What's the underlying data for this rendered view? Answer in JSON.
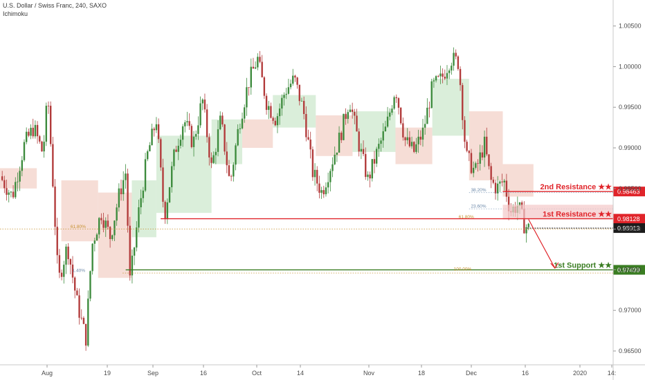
{
  "header": {
    "title": "U.S. Dollar / Swiss Franc, 240, SAXO",
    "indicator": "Ichimoku"
  },
  "colors": {
    "bull": "#3d8b3d",
    "bear": "#b23b3b",
    "resistance": "#e0242a",
    "support": "#3a7d22",
    "price_badge": "#1c1c1c",
    "cloud_bull": "#cde8cd",
    "cloud_bear": "#f3d2c8",
    "fib": "#6a87a8",
    "fib_gold": "#c5902e"
  },
  "chart_data": {
    "type": "candlestick",
    "yaxis": {
      "ylim": [
        0.9633,
        1.0082
      ],
      "ticks": [
        {
          "value": 1.005,
          "label": "1.00500"
        },
        {
          "value": 1.0,
          "label": "1.00000"
        },
        {
          "value": 0.995,
          "label": "0.99500"
        },
        {
          "value": 0.99,
          "label": "0.99000"
        },
        {
          "value": 0.985,
          "label": "0.98500"
        },
        {
          "value": 0.98,
          "label": "0.98000"
        },
        {
          "value": 0.975,
          "label": "0.97500"
        },
        {
          "value": 0.97,
          "label": "0.97000"
        },
        {
          "value": 0.965,
          "label": "0.96500"
        }
      ]
    },
    "xaxis": {
      "ticks": [
        "Aug",
        "19",
        "Sep",
        "16",
        "Oct",
        "14",
        "Nov",
        "18",
        "Dec",
        "16",
        "2020",
        "14:"
      ]
    },
    "key_points": [
      {
        "t": 0.0,
        "p": 0.9865
      },
      {
        "t": 0.02,
        "p": 0.984
      },
      {
        "t": 0.04,
        "p": 0.9905
      },
      {
        "t": 0.055,
        "p": 0.9925
      },
      {
        "t": 0.07,
        "p": 0.9893
      },
      {
        "t": 0.078,
        "p": 0.9965
      },
      {
        "t": 0.085,
        "p": 0.9875
      },
      {
        "t": 0.095,
        "p": 0.9735
      },
      {
        "t": 0.11,
        "p": 0.978
      },
      {
        "t": 0.125,
        "p": 0.9712
      },
      {
        "t": 0.14,
        "p": 0.9665
      },
      {
        "t": 0.15,
        "p": 0.978
      },
      {
        "t": 0.165,
        "p": 0.982
      },
      {
        "t": 0.18,
        "p": 0.979
      },
      {
        "t": 0.195,
        "p": 0.9845
      },
      {
        "t": 0.205,
        "p": 0.987
      },
      {
        "t": 0.212,
        "p": 0.9735
      },
      {
        "t": 0.225,
        "p": 0.9815
      },
      {
        "t": 0.24,
        "p": 0.989
      },
      {
        "t": 0.255,
        "p": 0.9935
      },
      {
        "t": 0.268,
        "p": 0.9815
      },
      {
        "t": 0.285,
        "p": 0.9895
      },
      {
        "t": 0.3,
        "p": 0.9935
      },
      {
        "t": 0.315,
        "p": 0.9905
      },
      {
        "t": 0.33,
        "p": 0.996
      },
      {
        "t": 0.345,
        "p": 0.9875
      },
      {
        "t": 0.36,
        "p": 0.9935
      },
      {
        "t": 0.375,
        "p": 0.9855
      },
      {
        "t": 0.39,
        "p": 0.993
      },
      {
        "t": 0.405,
        "p": 0.998
      },
      {
        "t": 0.42,
        "p": 1.001
      },
      {
        "t": 0.435,
        "p": 0.9955
      },
      {
        "t": 0.45,
        "p": 0.9935
      },
      {
        "t": 0.465,
        "p": 0.997
      },
      {
        "t": 0.48,
        "p": 0.9985
      },
      {
        "t": 0.495,
        "p": 0.9945
      },
      {
        "t": 0.51,
        "p": 0.987
      },
      {
        "t": 0.525,
        "p": 0.9845
      },
      {
        "t": 0.54,
        "p": 0.988
      },
      {
        "t": 0.555,
        "p": 0.9915
      },
      {
        "t": 0.57,
        "p": 0.996
      },
      {
        "t": 0.585,
        "p": 0.9905
      },
      {
        "t": 0.6,
        "p": 0.986
      },
      {
        "t": 0.615,
        "p": 0.9895
      },
      {
        "t": 0.63,
        "p": 0.9925
      },
      {
        "t": 0.645,
        "p": 0.9975
      },
      {
        "t": 0.66,
        "p": 0.991
      },
      {
        "t": 0.675,
        "p": 0.9895
      },
      {
        "t": 0.69,
        "p": 0.992
      },
      {
        "t": 0.705,
        "p": 0.9975
      },
      {
        "t": 0.72,
        "p": 0.9985
      },
      {
        "t": 0.735,
        "p": 1.001
      },
      {
        "t": 0.748,
        "p": 1.0005
      },
      {
        "t": 0.76,
        "p": 0.989
      },
      {
        "t": 0.775,
        "p": 0.987
      },
      {
        "t": 0.79,
        "p": 0.9905
      },
      {
        "t": 0.8,
        "p": 0.986
      },
      {
        "t": 0.81,
        "p": 0.985
      },
      {
        "t": 0.822,
        "p": 0.986
      },
      {
        "t": 0.832,
        "p": 0.9822
      },
      {
        "t": 0.845,
        "p": 0.983
      },
      {
        "t": 0.855,
        "p": 0.9805
      },
      {
        "t": 0.862,
        "p": 0.9801
      }
    ],
    "cloud": [
      {
        "x0": 0.0,
        "x1": 0.06,
        "top": 0.9875,
        "bot": 0.985,
        "color": "bear"
      },
      {
        "x0": 0.1,
        "x1": 0.16,
        "top": 0.986,
        "bot": 0.9785,
        "color": "bear"
      },
      {
        "x0": 0.16,
        "x1": 0.215,
        "top": 0.9845,
        "bot": 0.974,
        "color": "bear"
      },
      {
        "x0": 0.215,
        "x1": 0.255,
        "top": 0.986,
        "bot": 0.979,
        "color": "bull"
      },
      {
        "x0": 0.255,
        "x1": 0.345,
        "top": 0.9915,
        "bot": 0.982,
        "color": "bull"
      },
      {
        "x0": 0.345,
        "x1": 0.395,
        "top": 0.9935,
        "bot": 0.988,
        "color": "bull"
      },
      {
        "x0": 0.395,
        "x1": 0.445,
        "top": 0.9935,
        "bot": 0.99,
        "color": "bear"
      },
      {
        "x0": 0.445,
        "x1": 0.515,
        "top": 0.9965,
        "bot": 0.9925,
        "color": "bull"
      },
      {
        "x0": 0.515,
        "x1": 0.575,
        "top": 0.994,
        "bot": 0.989,
        "color": "bear"
      },
      {
        "x0": 0.575,
        "x1": 0.645,
        "top": 0.9945,
        "bot": 0.9895,
        "color": "bull"
      },
      {
        "x0": 0.645,
        "x1": 0.705,
        "top": 0.9925,
        "bot": 0.988,
        "color": "bear"
      },
      {
        "x0": 0.705,
        "x1": 0.765,
        "top": 0.9985,
        "bot": 0.9915,
        "color": "bull"
      },
      {
        "x0": 0.765,
        "x1": 0.82,
        "top": 0.9945,
        "bot": 0.986,
        "color": "bear"
      },
      {
        "x0": 0.82,
        "x1": 0.87,
        "top": 0.988,
        "bot": 0.984,
        "color": "bear"
      }
    ],
    "levels": [
      {
        "name": "2nd Resistance ★★",
        "price": 0.98463,
        "badge": "0.98463",
        "kind": "resistance",
        "x_start": 0.82
      },
      {
        "name": "1st Resistance ★★",
        "price": 0.98128,
        "badge": "0.98128",
        "kind": "resistance",
        "x_start": 0.262
      },
      {
        "name": "1st Support ★★",
        "price": 0.97499,
        "badge": "0.97499",
        "kind": "support",
        "x_start": 0.205
      }
    ],
    "current_price": {
      "price": 0.98013,
      "badge": "0.98013"
    },
    "fib_labels": [
      {
        "text": "61.80%",
        "price": 0.98,
        "t": 0.115,
        "style": "gold"
      },
      {
        "text": "38.20%",
        "price": 0.9845,
        "t": 0.768,
        "style": "blue"
      },
      {
        "text": "23.60%",
        "price": 0.9825,
        "t": 0.768,
        "style": "blue"
      },
      {
        "text": "61.80%",
        "price": 0.9812,
        "t": 0.748,
        "style": "gold"
      },
      {
        "text": "100.00%",
        "price": 0.9748,
        "t": 0.74,
        "style": "gold"
      },
      {
        "text": "1.40%",
        "price": 0.9746,
        "t": 0.118,
        "style": "blue"
      }
    ]
  }
}
